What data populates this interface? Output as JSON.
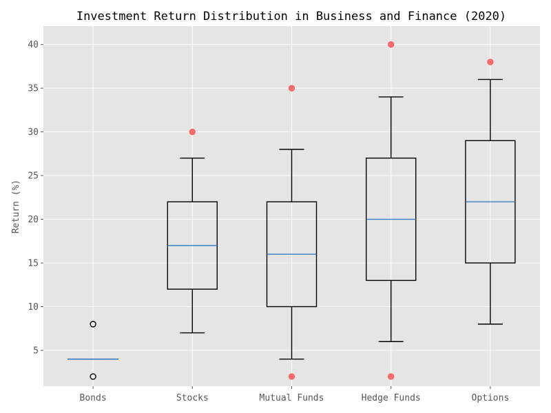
{
  "chart_data": {
    "type": "box",
    "title": "Investment Return Distribution in Business and Finance (2020)",
    "xlabel": "",
    "ylabel": "Return (%)",
    "ylim": [
      0.9,
      42.1
    ],
    "y_ticks": [
      5,
      10,
      15,
      20,
      25,
      30,
      35,
      40
    ],
    "categories": [
      "Bonds",
      "Stocks",
      "Mutual Funds",
      "Hedge Funds",
      "Options"
    ],
    "boxes": [
      {
        "min": 4,
        "q1": 4,
        "median": 4,
        "q3": 4,
        "max": 4,
        "outliers": [
          8,
          2
        ]
      },
      {
        "min": 7,
        "q1": 12,
        "median": 17,
        "q3": 22,
        "max": 27,
        "outliers": [
          30
        ]
      },
      {
        "min": 4,
        "q1": 10,
        "median": 16,
        "q3": 22,
        "max": 28,
        "outliers": [
          35,
          2
        ]
      },
      {
        "min": 6,
        "q1": 13,
        "median": 20,
        "q3": 27,
        "max": 34,
        "outliers": [
          40,
          2
        ]
      },
      {
        "min": 8,
        "q1": 15,
        "median": 22,
        "q3": 29,
        "max": 36,
        "outliers": [
          38
        ]
      }
    ],
    "outlier_styles": [
      "hollow-black",
      "red-filled",
      "red-filled",
      "red-filled",
      "red-filled"
    ],
    "grid": true,
    "colors": {
      "background": "#e5e5e5",
      "grid": "#ffffff",
      "box": "#000000",
      "median": "#3a7fc1",
      "outlier_red": "#ff4d4d",
      "outlier_hollow": "#000000"
    }
  }
}
